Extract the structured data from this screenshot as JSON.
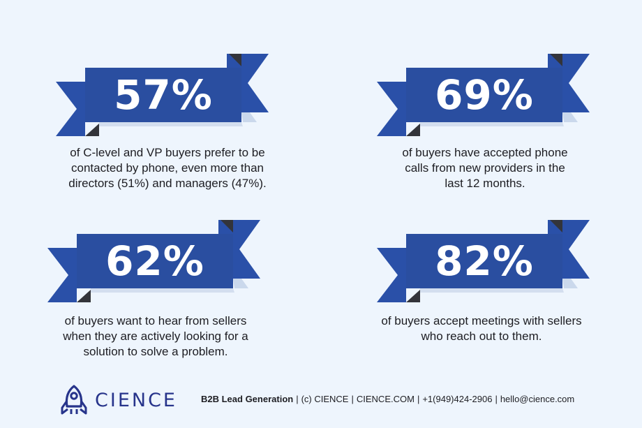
{
  "stats": [
    {
      "value": "57%",
      "description_lines": [
        "of C-level and VP buyers prefer to be",
        "contacted by phone, even more than",
        "directors (51%) and managers (47%)."
      ]
    },
    {
      "value": "69%",
      "description_lines": [
        "of buyers have accepted phone",
        "calls from new providers in the",
        "last 12 months."
      ]
    },
    {
      "value": "62%",
      "description_lines": [
        "of buyers want to hear from sellers",
        "when they are actively looking for a",
        "solution to solve a problem."
      ]
    },
    {
      "value": "82%",
      "description_lines": [
        "of buyers accept meetings with sellers",
        "who reach out to them."
      ]
    }
  ],
  "footer": {
    "brand": "CIENCE",
    "tagline": "B2B Lead Generation",
    "copyright": "(c) CIENCE",
    "website": "CIENCE.COM",
    "phone": "+1(949)424-2906",
    "email": "hello@cience.com",
    "separator": "|"
  },
  "colors": {
    "background": "#eef5fd",
    "ribbon_main": "#2a4ea0",
    "ribbon_tail": "#2a50a8",
    "ribbon_fold": "#33343a",
    "ribbon_shadow": "#cad8ec",
    "brand": "#27348b"
  },
  "icons": {
    "logo": "rocket-icon"
  }
}
